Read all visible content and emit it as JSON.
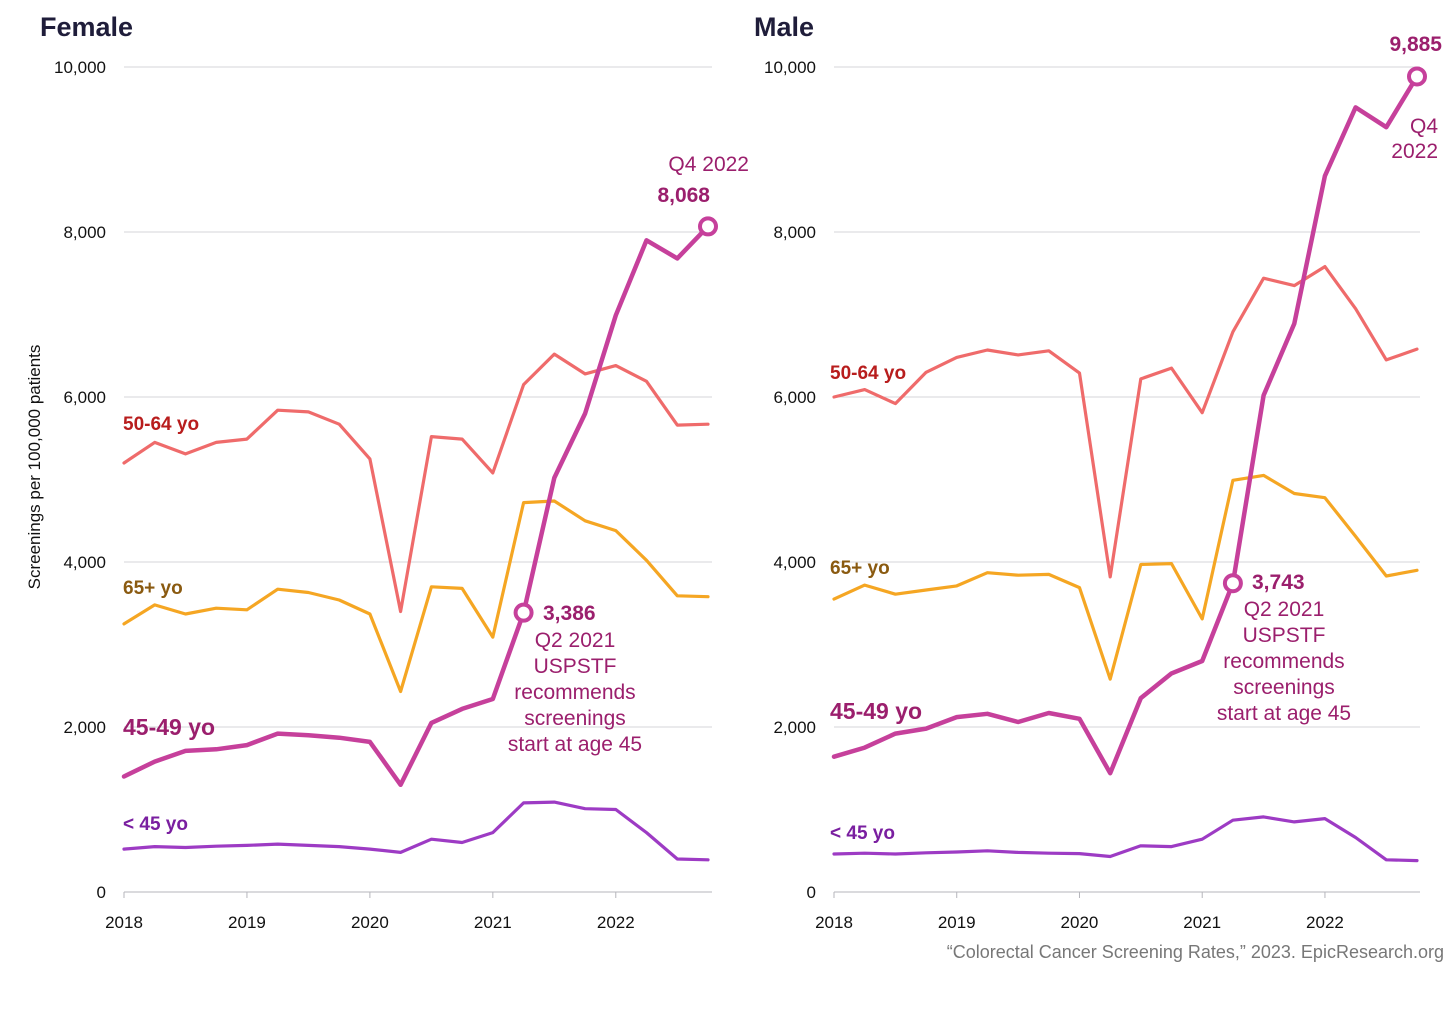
{
  "source": "“Colorectal Cancer Screening Rates,” 2023. EpicResearch.org",
  "chart_data": [
    {
      "type": "line",
      "title": "Female",
      "ylabel": "Screenings per 100,000 patients",
      "ylim": [
        0,
        10000
      ],
      "yticks": [
        "0",
        "2,000",
        "4,000",
        "6,000",
        "8,000",
        "10,000"
      ],
      "ytick_values": [
        0,
        2000,
        4000,
        6000,
        8000,
        10000
      ],
      "xticks": [
        "2018",
        "2019",
        "2020",
        "2021",
        "2022"
      ],
      "xtick_values": [
        2018,
        2019,
        2020,
        2021,
        2022
      ],
      "xlim": [
        2018,
        2022.75
      ],
      "grid": true,
      "x": [
        2018.0,
        2018.25,
        2018.5,
        2018.75,
        2019.0,
        2019.25,
        2019.5,
        2019.75,
        2020.0,
        2020.25,
        2020.5,
        2020.75,
        2021.0,
        2021.25,
        2021.5,
        2021.75,
        2022.0,
        2022.25,
        2022.5,
        2022.75
      ],
      "series": [
        {
          "name": "50-64 yo",
          "color": "#ef6b6b",
          "label_color": "#b81d1d",
          "values": [
            5200,
            5450,
            5310,
            5450,
            5490,
            5840,
            5820,
            5670,
            5250,
            3400,
            5520,
            5490,
            5080,
            6150,
            6520,
            6280,
            6380,
            6190,
            5660,
            5670
          ]
        },
        {
          "name": "65+ yo",
          "color": "#f5a623",
          "label_color": "#8a5a10",
          "values": [
            3250,
            3480,
            3370,
            3440,
            3420,
            3670,
            3630,
            3540,
            3370,
            2430,
            3700,
            3680,
            3090,
            4720,
            4740,
            4500,
            4380,
            4020,
            3590,
            3580
          ]
        },
        {
          "name": "45-49 yo",
          "color": "#c6409b",
          "label_color": "#9b1f6d",
          "values": [
            1400,
            1580,
            1710,
            1730,
            1780,
            1920,
            1900,
            1870,
            1820,
            1300,
            2050,
            2220,
            2340,
            3386,
            5020,
            5800,
            6990,
            7900,
            7680,
            8068
          ]
        },
        {
          "name": "< 45 yo",
          "color": "#9d3bc4",
          "label_color": "#7a1fa0",
          "values": [
            520,
            550,
            540,
            555,
            565,
            580,
            565,
            550,
            520,
            480,
            640,
            600,
            720,
            1080,
            1090,
            1010,
            1000,
            720,
            400,
            390
          ]
        }
      ],
      "annotations": [
        {
          "label": "3,386",
          "lines": [
            "Q2 2021",
            "USPSTF",
            "recommends",
            "screenings",
            "start at age 45"
          ],
          "x": 2021.25,
          "y": 3386
        },
        {
          "label": "8,068",
          "lines": [
            "Q4 2022"
          ],
          "x": 2022.75,
          "y": 8068
        }
      ]
    },
    {
      "type": "line",
      "title": "Male",
      "ylim": [
        0,
        10000
      ],
      "yticks": [
        "0",
        "2,000",
        "4,000",
        "6,000",
        "8,000",
        "10,000"
      ],
      "ytick_values": [
        0,
        2000,
        4000,
        6000,
        8000,
        10000
      ],
      "xticks": [
        "2018",
        "2019",
        "2020",
        "2021",
        "2022"
      ],
      "xtick_values": [
        2018,
        2019,
        2020,
        2021,
        2022
      ],
      "xlim": [
        2018,
        2022.75
      ],
      "grid": true,
      "x": [
        2018.0,
        2018.25,
        2018.5,
        2018.75,
        2019.0,
        2019.25,
        2019.5,
        2019.75,
        2020.0,
        2020.25,
        2020.5,
        2020.75,
        2021.0,
        2021.25,
        2021.5,
        2021.75,
        2022.0,
        2022.25,
        2022.5,
        2022.75
      ],
      "series": [
        {
          "name": "50-64 yo",
          "color": "#ef6b6b",
          "label_color": "#b81d1d",
          "values": [
            6000,
            6090,
            5920,
            6300,
            6480,
            6570,
            6510,
            6560,
            6290,
            3820,
            6220,
            6350,
            5810,
            6790,
            7440,
            7350,
            7580,
            7070,
            6450,
            6580
          ]
        },
        {
          "name": "65+ yo",
          "color": "#f5a623",
          "label_color": "#8a5a10",
          "values": [
            3550,
            3720,
            3610,
            3660,
            3710,
            3870,
            3840,
            3850,
            3690,
            2580,
            3970,
            3980,
            3310,
            4990,
            5050,
            4830,
            4780,
            4310,
            3830,
            3900
          ]
        },
        {
          "name": "45-49 yo",
          "color": "#c6409b",
          "label_color": "#9b1f6d",
          "values": [
            1640,
            1750,
            1920,
            1980,
            2120,
            2160,
            2060,
            2170,
            2100,
            1440,
            2350,
            2650,
            2800,
            3743,
            6020,
            6890,
            8680,
            9510,
            9270,
            9885
          ]
        },
        {
          "name": "< 45 yo",
          "color": "#9d3bc4",
          "label_color": "#7a1fa0",
          "values": [
            460,
            470,
            460,
            475,
            485,
            500,
            480,
            470,
            465,
            430,
            560,
            550,
            640,
            870,
            910,
            850,
            890,
            660,
            390,
            380
          ]
        }
      ],
      "annotations": [
        {
          "label": "3,743",
          "lines": [
            "Q2 2021",
            "USPSTF",
            "recommends",
            "screenings",
            "start at age 45"
          ],
          "x": 2021.25,
          "y": 3743
        },
        {
          "label": "9,885",
          "lines": [
            "Q4",
            "2022"
          ],
          "x": 2022.75,
          "y": 9885
        }
      ]
    }
  ]
}
